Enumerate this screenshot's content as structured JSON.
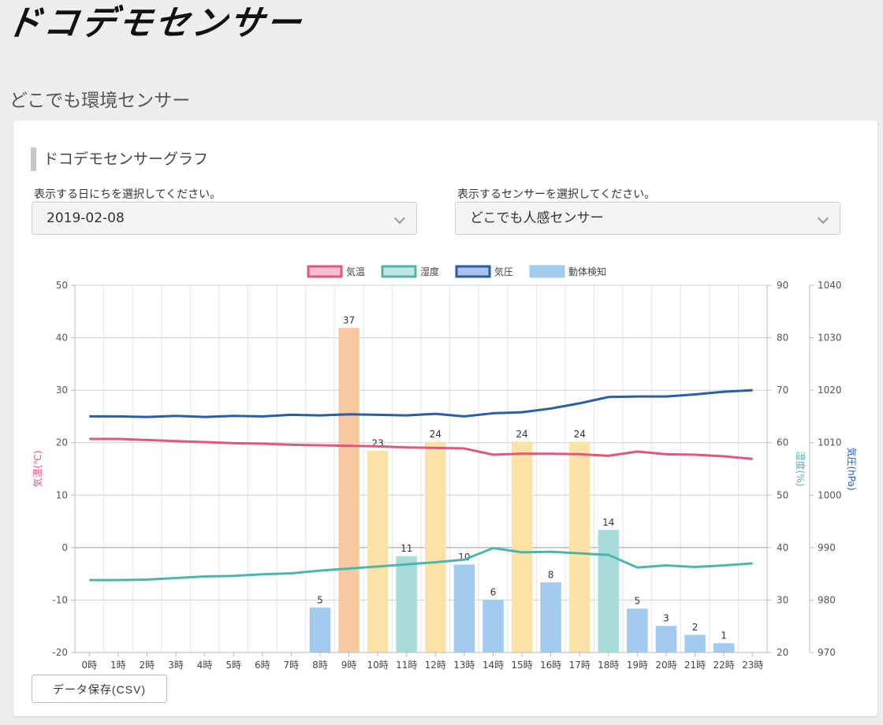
{
  "logo": {
    "text": "ドコデモセンサー"
  },
  "page": {
    "subtitle": "どこでも環境センサー"
  },
  "section": {
    "heading": "ドコデモセンサーグラフ"
  },
  "date_select": {
    "label": "表示する日にちを選択してください。",
    "value": "2019-02-08"
  },
  "sensor_select": {
    "label": "表示するセンサーを選択してください。",
    "value": "どこでも人感センサー"
  },
  "buttons": {
    "csv_label": "データ保存(CSV)"
  },
  "chart_data": {
    "type": "bar",
    "x": [
      "0時",
      "1時",
      "2時",
      "3時",
      "4時",
      "5時",
      "6時",
      "7時",
      "8時",
      "9時",
      "10時",
      "11時",
      "12時",
      "13時",
      "14時",
      "15時",
      "16時",
      "17時",
      "18時",
      "19時",
      "20時",
      "21時",
      "22時",
      "23時"
    ],
    "legend": [
      "気温",
      "湿度",
      "気圧",
      "動体検知"
    ],
    "legend_position": "top",
    "axes": {
      "temperature": {
        "label": "気温(℃)",
        "range": [
          -20,
          50
        ],
        "ticks": [
          50,
          40,
          30,
          20,
          10,
          0,
          -10,
          -20
        ],
        "color": "#e2577e"
      },
      "humidity": {
        "label": "湿度(%)",
        "range": [
          20,
          90
        ],
        "ticks": [
          90,
          80,
          70,
          60,
          50,
          40,
          30,
          20
        ],
        "color": "#4db6ac"
      },
      "pressure": {
        "label": "気圧(hPa)",
        "range": [
          970,
          1040
        ],
        "ticks": [
          1040,
          1030,
          1020,
          1010,
          1000,
          990,
          980,
          970
        ],
        "color": "#2a5ea8"
      }
    },
    "grid": true,
    "series": [
      {
        "name": "気温",
        "type": "line",
        "axis": "temperature",
        "color": "#e2577e",
        "values": [
          20.7,
          20.7,
          20.5,
          20.3,
          20.1,
          19.9,
          19.8,
          19.6,
          19.5,
          19.4,
          19.3,
          19.1,
          19.0,
          18.9,
          17.7,
          17.9,
          17.9,
          17.8,
          17.5,
          18.3,
          17.8,
          17.7,
          17.4,
          16.9
        ]
      },
      {
        "name": "湿度",
        "type": "line",
        "axis": "humidity",
        "color": "#4db6ac",
        "values": [
          33.8,
          33.8,
          33.9,
          34.2,
          34.5,
          34.6,
          34.9,
          35.1,
          35.6,
          36.0,
          36.4,
          36.8,
          37.2,
          37.7,
          39.9,
          39.1,
          39.2,
          38.9,
          38.6,
          36.2,
          36.6,
          36.3,
          36.6,
          37.0
        ]
      },
      {
        "name": "気圧",
        "type": "line",
        "axis": "pressure",
        "color": "#2a5ea8",
        "values": [
          1015.0,
          1015.0,
          1014.9,
          1015.1,
          1014.9,
          1015.1,
          1015.0,
          1015.3,
          1015.2,
          1015.4,
          1015.3,
          1015.2,
          1015.5,
          1015.0,
          1015.6,
          1015.8,
          1016.5,
          1017.5,
          1018.7,
          1018.8,
          1018.8,
          1019.2,
          1019.7,
          1020.0
        ]
      },
      {
        "name": "動体検知",
        "type": "bar",
        "axis": "temperature",
        "values": [
          null,
          null,
          null,
          null,
          null,
          null,
          null,
          null,
          5,
          37,
          23,
          11,
          24,
          10,
          6,
          24,
          8,
          24,
          14,
          5,
          3,
          2,
          1,
          null
        ],
        "bar_tops": [
          null,
          null,
          null,
          null,
          null,
          null,
          null,
          null,
          -11.5,
          41.8,
          18.4,
          -1.7,
          20.1,
          -3.3,
          -10.0,
          20.1,
          -6.7,
          20.1,
          3.3,
          -11.7,
          -15.0,
          -16.7,
          -18.3,
          null
        ],
        "colors": {
          "blue": "#a3cbf0",
          "teal": "#a8dcd9",
          "yellow": "#fbe2a6",
          "orange": "#f8c9a0"
        },
        "color_keys": [
          null,
          null,
          null,
          null,
          null,
          null,
          null,
          null,
          "blue",
          "orange",
          "yellow",
          "teal",
          "yellow",
          "blue",
          "blue",
          "yellow",
          "blue",
          "yellow",
          "teal",
          "blue",
          "blue",
          "blue",
          "blue",
          null
        ]
      }
    ]
  }
}
